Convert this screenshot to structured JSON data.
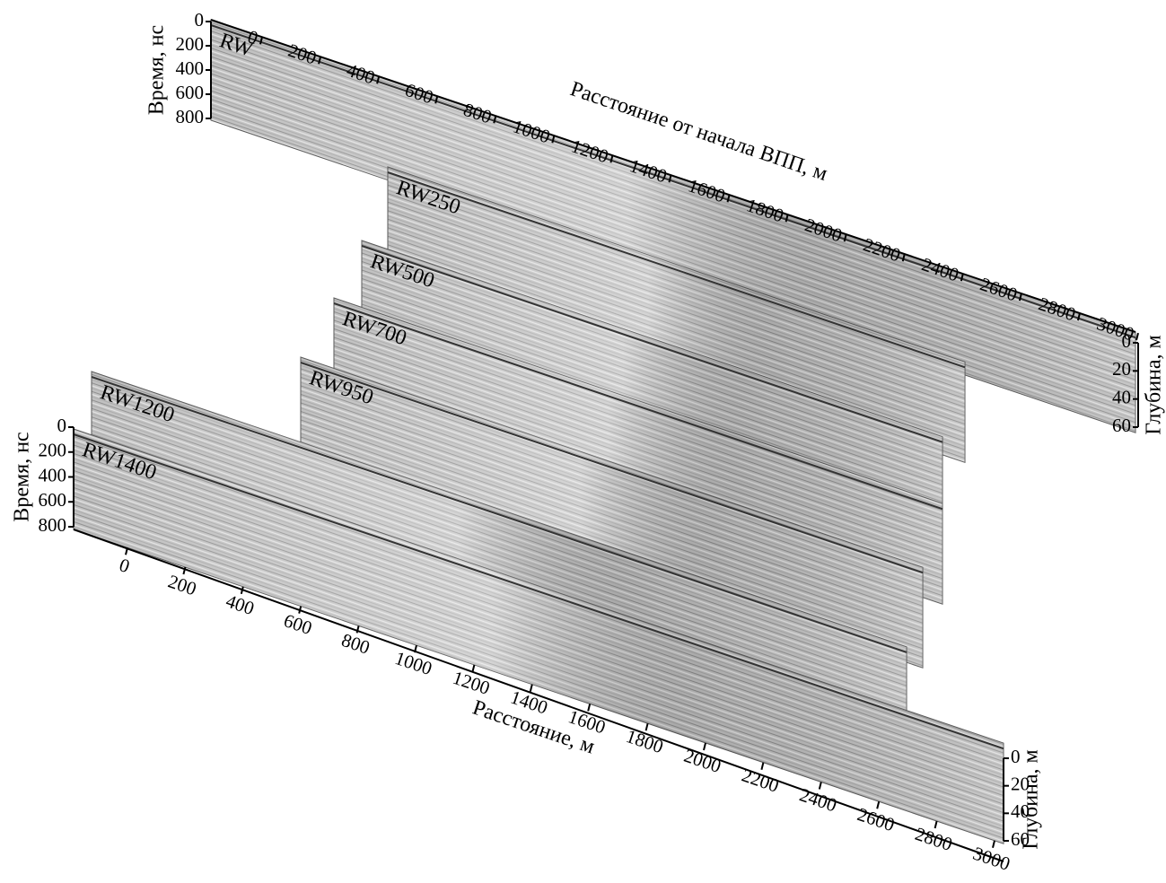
{
  "profiles": [
    "RW",
    "RW250",
    "RW500",
    "RW700",
    "RW950",
    "RW1200",
    "RW1400"
  ],
  "top": {
    "distance_axis": {
      "title": "Расстояние от начала ВПП, м",
      "lim": [
        0,
        3000
      ],
      "ticks": [
        0,
        200,
        400,
        600,
        800,
        1000,
        1200,
        1400,
        1600,
        1800,
        2000,
        2200,
        2400,
        2600,
        2800,
        3000
      ]
    },
    "time_axis": {
      "title": "Время, нс",
      "lim": [
        0,
        800
      ],
      "ticks": [
        0,
        200,
        400,
        600,
        800
      ]
    },
    "depth_axis": {
      "title": "Глубина, м",
      "lim": [
        0,
        60
      ],
      "ticks": [
        0,
        20,
        40,
        60
      ]
    }
  },
  "bottom": {
    "distance_axis": {
      "title": "Расстояние, м",
      "lim": [
        0,
        3000
      ],
      "ticks": [
        0,
        200,
        400,
        600,
        800,
        1000,
        1200,
        1400,
        1600,
        1800,
        2000,
        2200,
        2400,
        2600,
        2800,
        3000
      ]
    },
    "time_axis": {
      "title": "Время, нс",
      "lim": [
        0,
        800
      ],
      "ticks": [
        0,
        200,
        400,
        600,
        800
      ]
    },
    "depth_axis": {
      "title": "Глубина, м",
      "lim": [
        0,
        60
      ],
      "ticks": [
        0,
        20,
        40,
        60
      ]
    }
  }
}
